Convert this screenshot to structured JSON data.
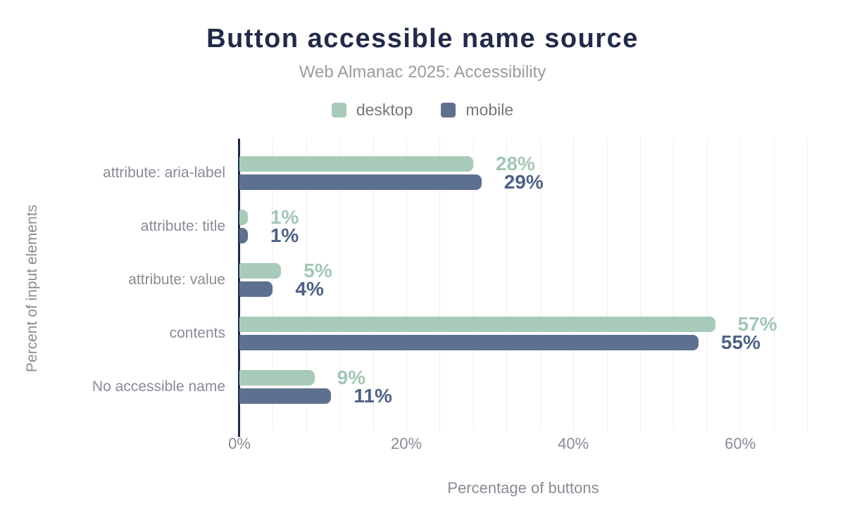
{
  "header": {
    "title": "Button accessible name source",
    "subtitle": "Web Almanac 2025: Accessibility"
  },
  "colors": {
    "title_navy": "#212b49",
    "axis_line": "#1d2b45",
    "grid_line": "#eeeeee",
    "axis_text_gray": "#878c94",
    "subtitle_gray": "#9b9b9b",
    "desktop_green": "#a8cbb9",
    "mobile_blue": "#5e7090"
  },
  "chart_data": {
    "type": "bar",
    "orientation": "horizontal",
    "title": "Button accessible name source",
    "subtitle": "Web Almanac 2025: Accessibility",
    "categories": [
      "attribute: aria-label",
      "attribute: title",
      "attribute: value",
      "contents",
      "No accessible name"
    ],
    "series": [
      {
        "name": "desktop",
        "color": "#a8cbb9",
        "label_color": "#a3c6b4",
        "values": [
          28,
          1,
          5,
          57,
          9
        ]
      },
      {
        "name": "mobile",
        "color": "#5e7090",
        "label_color": "#4f6285",
        "values": [
          29,
          1,
          4,
          55,
          11
        ]
      }
    ],
    "value_suffix": "%",
    "xlabel": "Percentage of buttons",
    "ylabel": "Percent of input elements",
    "x_ticks": [
      {
        "value": 0,
        "label": "0%"
      },
      {
        "value": 20,
        "label": "20%"
      },
      {
        "value": 40,
        "label": "40%"
      },
      {
        "value": 60,
        "label": "60%"
      }
    ],
    "xlim": [
      0,
      68
    ],
    "grid_step": 4,
    "grid": "vertical-minor",
    "legend_position": "top"
  }
}
